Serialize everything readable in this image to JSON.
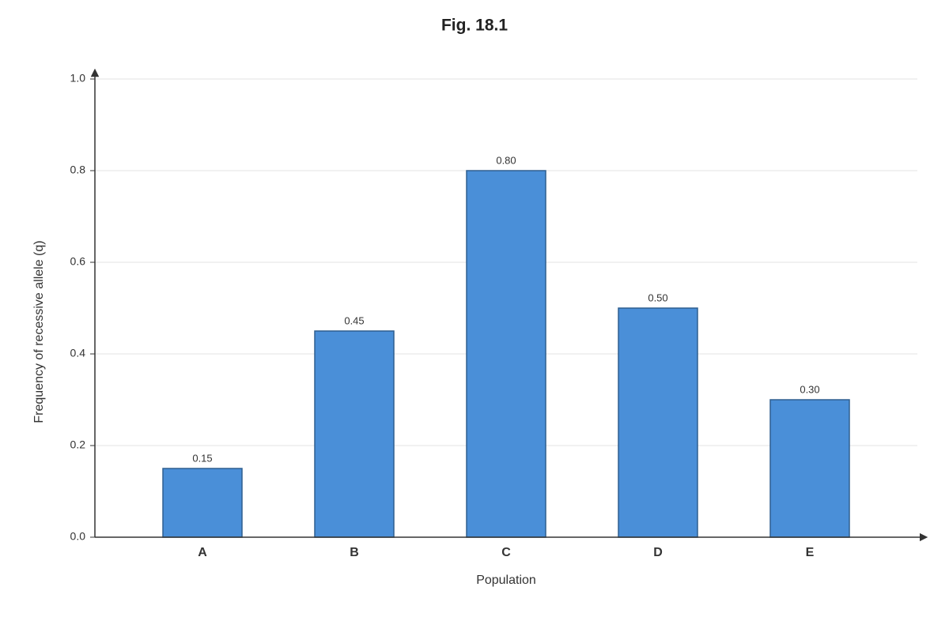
{
  "chart_data": {
    "type": "bar",
    "title": "Fig. 18.1",
    "x_label": "Population",
    "y_label": "Frequency of recessive allele (q)",
    "categories": [
      "A",
      "B",
      "C",
      "D",
      "E"
    ],
    "values": [
      0.15,
      0.45,
      0.8,
      0.5,
      0.3
    ],
    "value_labels": [
      "0.15",
      "0.45",
      "0.80",
      "0.50",
      "0.30"
    ],
    "color": "#4a8fd8",
    "ylim": [
      0,
      1
    ],
    "yticks": [
      {
        "value": 0,
        "label": "0.0"
      },
      0.2,
      0.4,
      0.6,
      0.8,
      {
        "value": 1,
        "label": "1.0"
      }
    ],
    "grid": true
  }
}
